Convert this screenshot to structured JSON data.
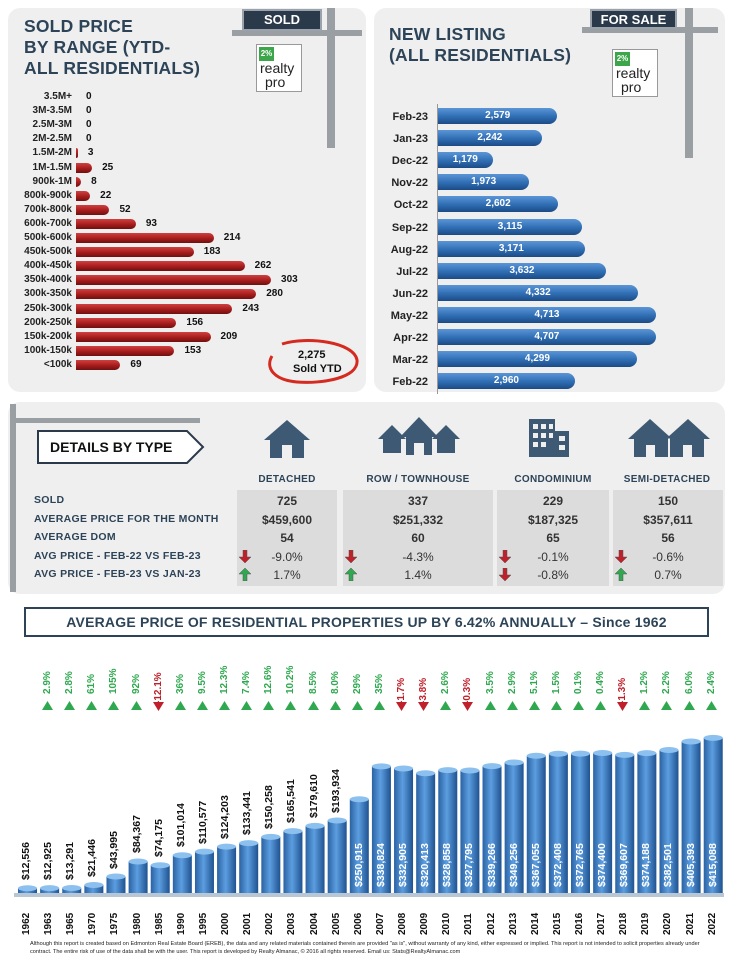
{
  "sold_panel": {
    "title_lines": [
      "SOLD PRICE",
      "BY RANGE (YTD-",
      "ALL RESIDENTIALS)"
    ],
    "sign": "SOLD",
    "callout_value": "2,275",
    "callout_label": "Sold YTD"
  },
  "listing_panel": {
    "title_lines": [
      "NEW LISTING",
      "(ALL RESIDENTIALS)"
    ],
    "sign": "FOR SALE"
  },
  "logo": {
    "percent": "2%",
    "line1": "realty",
    "line2": "pro"
  },
  "chart_data": [
    {
      "type": "bar",
      "orientation": "horizontal",
      "title": "SOLD PRICE BY RANGE (YTD- ALL RESIDENTIALS)",
      "categories": [
        "3.5M+",
        "3M-3.5M",
        "2.5M-3M",
        "2M-2.5M",
        "1.5M-2M",
        "1M-1.5M",
        "900k-1M",
        "800k-900k",
        "700k-800k",
        "600k-700k",
        "500k-600k",
        "450k-500k",
        "400k-450k",
        "350k-400k",
        "300k-350k",
        "250k-300k",
        "200k-250k",
        "150k-200k",
        "100k-150k",
        "<100k"
      ],
      "values": [
        0,
        0,
        0,
        0,
        3,
        25,
        8,
        22,
        52,
        93,
        214,
        183,
        262,
        303,
        280,
        243,
        156,
        209,
        153,
        69
      ],
      "value_labels": [
        "0",
        "0",
        "0",
        "0",
        "3",
        "25",
        "8",
        "22",
        "52",
        "93",
        "214",
        "183",
        "262",
        "303",
        "280",
        "243",
        "156",
        "209",
        "153",
        "69"
      ],
      "color": "#a61c1c",
      "xlim": [
        0,
        320
      ]
    },
    {
      "type": "bar",
      "orientation": "horizontal",
      "title": "NEW LISTING (ALL RESIDENTIALS)",
      "categories": [
        "Feb-23",
        "Jan-23",
        "Dec-22",
        "Nov-22",
        "Oct-22",
        "Sep-22",
        "Aug-22",
        "Jul-22",
        "Jun-22",
        "May-22",
        "Apr-22",
        "Mar-22",
        "Feb-22"
      ],
      "values": [
        2579,
        2242,
        1179,
        1973,
        2602,
        3115,
        3171,
        3632,
        4332,
        4713,
        4707,
        4299,
        2960
      ],
      "value_labels": [
        "2,579",
        "2,242",
        "1,179",
        "1,973",
        "2,602",
        "3,115",
        "3,171",
        "3,632",
        "4,332",
        "4,713",
        "4,707",
        "4,299",
        "2,960"
      ],
      "color": "#2f6db3",
      "xlim": [
        0,
        4800
      ]
    },
    {
      "type": "bar",
      "title": "AVERAGE PRICE OF RESIDENTIAL PROPERTIES UP BY 6.42% ANNUALLY – Since 1962",
      "categories": [
        "1962",
        "1963",
        "1965",
        "1970",
        "1975",
        "1980",
        "1985",
        "1990",
        "1995",
        "2000",
        "2001",
        "2002",
        "2003",
        "2004",
        "2005",
        "2006",
        "2007",
        "2008",
        "2009",
        "2010",
        "2011",
        "2012",
        "2013",
        "2014",
        "2015",
        "2016",
        "2017",
        "2018",
        "2019",
        "2020",
        "2021",
        "2022"
      ],
      "values": [
        12556,
        12925,
        13291,
        21446,
        43995,
        84367,
        74175,
        101014,
        110577,
        124203,
        133441,
        150258,
        165541,
        179610,
        193934,
        250915,
        338824,
        332905,
        320413,
        328858,
        327795,
        339266,
        349256,
        367055,
        372408,
        372765,
        374400,
        369607,
        374188,
        382501,
        405393,
        415088
      ],
      "value_labels": [
        "$12,556",
        "$12,925",
        "$13,291",
        "$21,446",
        "$43,995",
        "$84,367",
        "$74,175",
        "$101,014",
        "$110,577",
        "$124,203",
        "$133,441",
        "$150,258",
        "$165,541",
        "$179,610",
        "$193,934",
        "$250,915",
        "$338,824",
        "$332,905",
        "$320,413",
        "$328,858",
        "$327,795",
        "$339,266",
        "$349,256",
        "$367,055",
        "$372,408",
        "$372,765",
        "$374,400",
        "$369,607",
        "$374,188",
        "$382,501",
        "$405,393",
        "$415,088"
      ],
      "changes": [
        "2.9%",
        "2.8%",
        "61%",
        "105%",
        "92%",
        "-12.1%",
        "36%",
        "9.5%",
        "12.3%",
        "7.4%",
        "12.6%",
        "10.2%",
        "8.5%",
        "8.0%",
        "29%",
        "35%",
        "-1.7%",
        "-3.8%",
        "2.6%",
        "-0.3%",
        "3.5%",
        "2.9%",
        "5.1%",
        "1.5%",
        "0.1%",
        "0.4%",
        "-1.3%",
        "1.2%",
        "2.2%",
        "6.0%",
        "2.4%"
      ],
      "color": "#3a7fc6",
      "ylim": [
        0,
        420000
      ]
    }
  ],
  "details": {
    "heading": "DETAILS BY TYPE",
    "types": [
      "DETACHED",
      "ROW / TOWNHOUSE",
      "CONDOMINIUM",
      "SEMI-DETACHED"
    ],
    "row_labels": [
      "SOLD",
      "AVERAGE PRICE FOR THE MONTH",
      "AVERAGE DOM",
      "AVG PRICE - FEB-22 VS FEB-23",
      "AVG PRICE - FEB-23 VS JAN-23"
    ],
    "columns": [
      {
        "sold": "725",
        "price": "$459,600",
        "dom": "54",
        "yoy": "-9.0%",
        "yoy_dir": "down",
        "mom": "1.7%",
        "mom_dir": "up"
      },
      {
        "sold": "337",
        "price": "$251,332",
        "dom": "60",
        "yoy": "-4.3%",
        "yoy_dir": "down",
        "mom": "1.4%",
        "mom_dir": "up"
      },
      {
        "sold": "229",
        "price": "$187,325",
        "dom": "65",
        "yoy": "-0.1%",
        "yoy_dir": "down",
        "mom": "-0.8%",
        "mom_dir": "down"
      },
      {
        "sold": "150",
        "price": "$357,611",
        "dom": "56",
        "yoy": "-0.6%",
        "yoy_dir": "down",
        "mom": "0.7%",
        "mom_dir": "up"
      }
    ]
  },
  "banner": "AVERAGE PRICE OF RESIDENTIAL PROPERTIES UP BY 6.42% ANNUALLY – Since 1962",
  "disclaimer": "Although this report is created based on Edmonton Real Estate Board (EREB), the data and any related materials contained therein are provided \"as is\", without warranty of any kind, either expressed or implied. This report is not intended to solicit properties already under contract. The entire risk of use of the data shall be with the user. This report is developed by Realty Almanac, © 2016 all rights reserved. Email us: Stats@RealtyAlmanac.com",
  "colors": {
    "navy": "#2d4458",
    "red_bar": "#a61c1c",
    "blue_bar": "#2f6db3",
    "up": "#2fa84f",
    "down": "#c0202a"
  }
}
